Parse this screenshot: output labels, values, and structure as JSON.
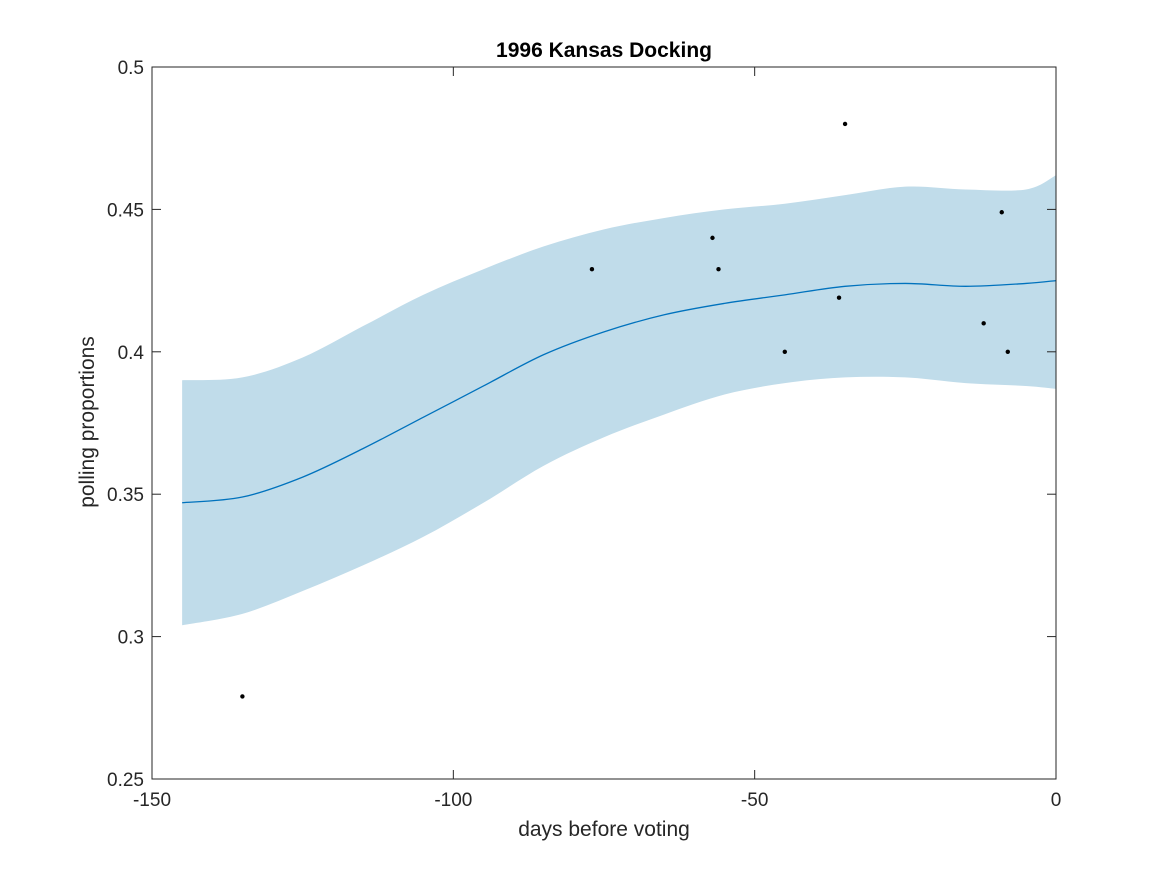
{
  "chart_data": {
    "type": "line",
    "title": "1996 Kansas Docking",
    "xlabel": "days before voting",
    "ylabel": "polling proportions",
    "xlim": [
      -150,
      0
    ],
    "ylim": [
      0.25,
      0.5
    ],
    "xticks": [
      -150,
      -100,
      -50,
      0
    ],
    "xtick_labels": [
      "-150",
      "-100",
      "-50",
      "0"
    ],
    "yticks": [
      0.25,
      0.3,
      0.35,
      0.4,
      0.45,
      0.5
    ],
    "ytick_labels": [
      "0.25",
      "0.3",
      "0.35",
      "0.4",
      "0.45",
      "0.5"
    ],
    "grid": false,
    "colors": {
      "mean": "#0072BD",
      "band": "#c0dcea",
      "points": "#000000"
    },
    "series": [
      {
        "type": "line",
        "x": [
          -145,
          -135,
          -125,
          -115,
          -105,
          -95,
          -85,
          -75,
          -65,
          -55,
          -45,
          -35,
          -25,
          -15,
          -5,
          0
        ],
        "y": [
          0.347,
          0.349,
          0.356,
          0.366,
          0.377,
          0.388,
          0.399,
          0.407,
          0.413,
          0.417,
          0.42,
          0.423,
          0.424,
          0.423,
          0.424,
          0.425
        ]
      },
      {
        "type": "band",
        "x": [
          -145,
          -135,
          -125,
          -115,
          -105,
          -95,
          -85,
          -75,
          -65,
          -55,
          -45,
          -35,
          -25,
          -15,
          -5,
          0
        ],
        "lower": [
          0.304,
          0.308,
          0.316,
          0.325,
          0.335,
          0.347,
          0.36,
          0.37,
          0.378,
          0.385,
          0.389,
          0.391,
          0.391,
          0.389,
          0.388,
          0.387
        ],
        "upper": [
          0.39,
          0.391,
          0.398,
          0.409,
          0.42,
          0.429,
          0.437,
          0.443,
          0.447,
          0.45,
          0.452,
          0.455,
          0.458,
          0.457,
          0.457,
          0.462
        ]
      },
      {
        "type": "scatter",
        "x": [
          -135,
          -77,
          -57,
          -56,
          -45,
          -36,
          -35,
          -12,
          -9,
          -8
        ],
        "y": [
          0.279,
          0.429,
          0.44,
          0.429,
          0.4,
          0.419,
          0.48,
          0.41,
          0.449,
          0.4
        ]
      }
    ]
  }
}
